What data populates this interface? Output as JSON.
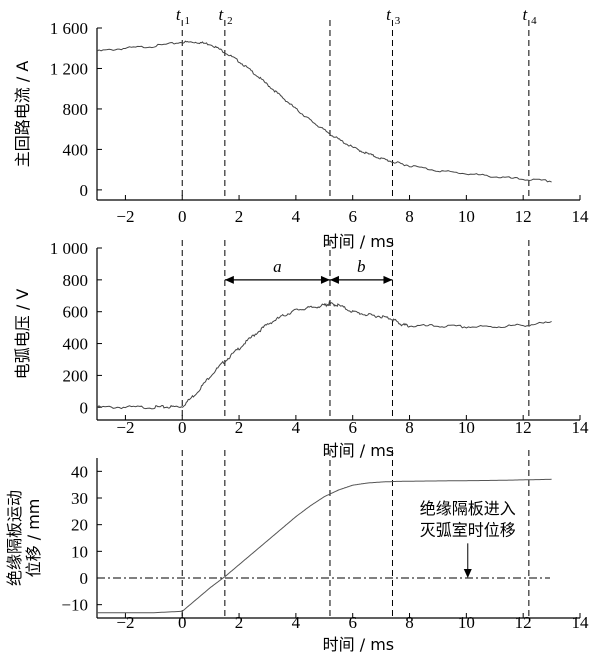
{
  "chart_data": [
    {
      "type": "line",
      "ylabel": "主回路电流 / A",
      "xlabel": "时间 / ms",
      "xlim": [
        -3,
        14
      ],
      "ylim": [
        -100,
        1600
      ],
      "xticks": [
        "−2",
        "0",
        "2",
        "4",
        "6",
        "8",
        "10",
        "12",
        "14"
      ],
      "yticks": [
        "0",
        "400",
        "800",
        "1 200",
        "1 600"
      ],
      "series": [
        {
          "x": [
            -3,
            -2,
            -1,
            0,
            0.5,
            1,
            1.5,
            2,
            2.5,
            3,
            3.5,
            4,
            4.5,
            5,
            5.5,
            6,
            6.5,
            7,
            7.5,
            8,
            9,
            10,
            11,
            12,
            13
          ],
          "y": [
            1370,
            1400,
            1420,
            1460,
            1460,
            1440,
            1360,
            1270,
            1160,
            1040,
            920,
            800,
            690,
            590,
            500,
            420,
            360,
            310,
            270,
            240,
            190,
            160,
            130,
            105,
            85
          ]
        }
      ]
    },
    {
      "type": "line",
      "ylabel": "电弧电压 / V",
      "xlabel": "时间 / ms",
      "xlim": [
        -3,
        14
      ],
      "ylim": [
        -80,
        1000
      ],
      "xticks": [
        "−2",
        "0",
        "2",
        "4",
        "6",
        "8",
        "10",
        "12",
        "14"
      ],
      "yticks": [
        "0",
        "200",
        "400",
        "600",
        "800",
        "1 000"
      ],
      "annotations": [
        "a",
        "b"
      ],
      "series": [
        {
          "x": [
            -3,
            -2,
            -1,
            -0.5,
            0,
            0.5,
            1,
            1.5,
            2,
            2.5,
            3,
            3.5,
            4,
            4.5,
            5,
            5.2,
            5.5,
            6,
            6.5,
            7,
            7.4,
            7.7,
            8,
            9,
            10,
            11,
            12,
            13
          ],
          "y": [
            0,
            0,
            0,
            2,
            5,
            90,
            200,
            290,
            370,
            450,
            520,
            570,
            610,
            625,
            640,
            650,
            640,
            600,
            580,
            570,
            555,
            520,
            510,
            510,
            505,
            505,
            515,
            530
          ]
        }
      ]
    },
    {
      "type": "line",
      "ylabel": "绝缘隔板运动位移 / mm",
      "xlabel": "时间 / ms",
      "xlim": [
        -3,
        14
      ],
      "ylim": [
        -15,
        45
      ],
      "xticks": [
        "−2",
        "0",
        "2",
        "4",
        "6",
        "8",
        "10",
        "12",
        "14"
      ],
      "yticks": [
        "−10",
        "0",
        "10",
        "20",
        "30",
        "40"
      ],
      "reference_line": 0,
      "annotation": "绝缘隔板进入灭弧室时位移",
      "annotation_lines": [
        "绝缘隔板进入",
        "灭弧室时位移"
      ],
      "series": [
        {
          "x": [
            -3,
            -2,
            -1,
            0,
            0.5,
            1,
            1.5,
            2,
            2.5,
            3,
            3.5,
            4,
            4.5,
            5,
            5.5,
            6,
            6.5,
            7,
            7.5,
            8,
            9,
            10,
            11,
            12,
            13
          ],
          "y": [
            -13,
            -13,
            -13,
            -12.5,
            -8,
            -3.5,
            0.5,
            5,
            9.5,
            14,
            18.5,
            23,
            27,
            30.5,
            33,
            34.8,
            35.6,
            36,
            36.2,
            36.3,
            36.4,
            36.5,
            36.6,
            36.8,
            37
          ]
        }
      ]
    }
  ],
  "time_markers": [
    {
      "label": "t",
      "sub": "1",
      "x": 0
    },
    {
      "label": "t",
      "sub": "2",
      "x": 1.5
    },
    {
      "label": "t",
      "sub": "3",
      "x": 7.4
    },
    {
      "label": "t",
      "sub": "4",
      "x": 12.2
    }
  ],
  "extra_dashed_x": 5.2
}
